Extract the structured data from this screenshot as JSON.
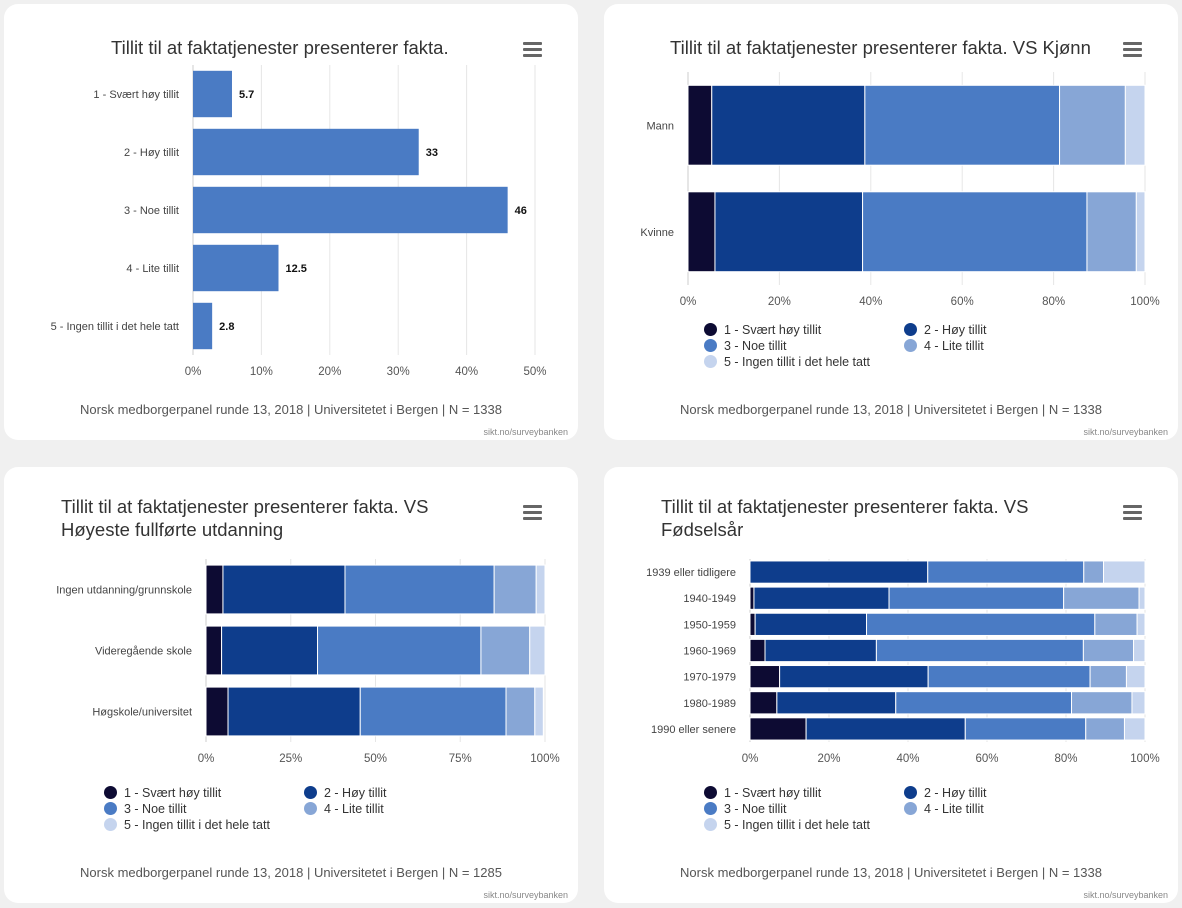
{
  "footer_credit": "sikt.no/surveybanken",
  "legend_items": [
    {
      "label": "1 - Svært høy tillit",
      "color": "#0d0b33"
    },
    {
      "label": "2 - Høy tillit",
      "color": "#0e3d8c"
    },
    {
      "label": "3 - Noe tillit",
      "color": "#4a7bc4"
    },
    {
      "label": "4 - Lite tillit",
      "color": "#87a6d6"
    },
    {
      "label": "5 - Ingen tillit i det hele tatt",
      "color": "#c5d4ee"
    }
  ],
  "chart_data": [
    {
      "type": "bar",
      "orientation": "horizontal",
      "title": "Tillit til at faktatjenester presenterer fakta.",
      "categories": [
        "1 - Svært høy tillit",
        "2 - Høy tillit",
        "3 - Noe tillit",
        "4 - Lite tillit",
        "5 - Ingen tillit i det hele tatt"
      ],
      "values": [
        5.7,
        33,
        46,
        12.5,
        2.8
      ],
      "value_labels": [
        "5.7",
        "33",
        "46",
        "12.5",
        "2.8"
      ],
      "color": "#4a7bc4",
      "xlim": [
        0,
        50
      ],
      "x_ticks": [
        "0%",
        "10%",
        "20%",
        "30%",
        "40%",
        "50%"
      ],
      "grid": true,
      "footer": "Norsk medborgerpanel runde 13, 2018 | Universitetet i Bergen | N = 1338"
    },
    {
      "type": "bar",
      "orientation": "horizontal",
      "stacked": "percent",
      "title": "Tillit til at faktatjenester presenterer fakta. VS Kjønn",
      "categories": [
        "Mann",
        "Kvinne"
      ],
      "series": [
        {
          "name": "1 - Svært høy tillit",
          "values": [
            5.2,
            5.9
          ]
        },
        {
          "name": "2 - Høy tillit",
          "values": [
            33.5,
            32.3
          ]
        },
        {
          "name": "3 - Noe tillit",
          "values": [
            42.6,
            49.1
          ]
        },
        {
          "name": "4 - Lite tillit",
          "values": [
            14.4,
            10.8
          ]
        },
        {
          "name": "5 - Ingen tillit i det hele tatt",
          "values": [
            4.3,
            1.9
          ]
        }
      ],
      "xlim": [
        0,
        100
      ],
      "x_ticks": [
        "0%",
        "20%",
        "40%",
        "60%",
        "80%",
        "100%"
      ],
      "grid": true,
      "legend": "bottom",
      "footer": "Norsk medborgerpanel runde 13, 2018 | Universitetet i Bergen | N = 1338"
    },
    {
      "type": "bar",
      "orientation": "horizontal",
      "stacked": "percent",
      "title": "Tillit til at faktatjenester presenterer fakta. VS Høyeste fullførte utdanning",
      "categories": [
        "Ingen utdanning/grunnskole",
        "Videregående skole",
        "Høgskole/universitet"
      ],
      "series": [
        {
          "name": "1 - Svært høy tillit",
          "values": [
            5,
            4.6,
            6.5
          ]
        },
        {
          "name": "2 - Høy tillit",
          "values": [
            36,
            28.3,
            39
          ]
        },
        {
          "name": "3 - Noe tillit",
          "values": [
            44,
            48.2,
            43
          ]
        },
        {
          "name": "4 - Lite tillit",
          "values": [
            12.4,
            14.4,
            8.5
          ]
        },
        {
          "name": "5 - Ingen tillit i det hele tatt",
          "values": [
            2.6,
            4.5,
            2.5
          ]
        }
      ],
      "xlim": [
        0,
        100
      ],
      "x_ticks": [
        "0%",
        "25%",
        "50%",
        "75%",
        "100%"
      ],
      "grid": true,
      "legend": "bottom",
      "footer": "Norsk medborgerpanel runde 13, 2018 | Universitetet i Bergen | N = 1285"
    },
    {
      "type": "bar",
      "orientation": "horizontal",
      "stacked": "percent",
      "title": "Tillit til at faktatjenester presenterer fakta. VS Fødselsår",
      "categories": [
        "1939 eller tidligere",
        "1940-1949",
        "1950-1959",
        "1960-1969",
        "1970-1979",
        "1980-1989",
        "1990 eller senere"
      ],
      "series": [
        {
          "name": "1 - Svært høy tillit",
          "values": [
            0,
            1,
            1.3,
            3.8,
            7.5,
            6.8,
            14.2
          ]
        },
        {
          "name": "2 - Høy tillit",
          "values": [
            45,
            34.2,
            28.2,
            28.2,
            37.6,
            30.1,
            40.3
          ]
        },
        {
          "name": "3 - Noe tillit",
          "values": [
            39.5,
            44.2,
            57.8,
            52.4,
            41,
            44.5,
            30.5
          ]
        },
        {
          "name": "4 - Lite tillit",
          "values": [
            5,
            19.1,
            10.7,
            12.7,
            9.2,
            15.3,
            9.8
          ]
        },
        {
          "name": "5 - Ingen tillit i det hele tatt",
          "values": [
            10.5,
            1.5,
            2,
            2.9,
            4.7,
            3.3,
            5.2
          ]
        }
      ],
      "xlim": [
        0,
        100
      ],
      "x_ticks": [
        "0%",
        "20%",
        "40%",
        "60%",
        "80%",
        "100%"
      ],
      "grid": true,
      "legend": "bottom",
      "footer": "Norsk medborgerpanel runde 13, 2018 | Universitetet i Bergen | N = 1338"
    }
  ]
}
